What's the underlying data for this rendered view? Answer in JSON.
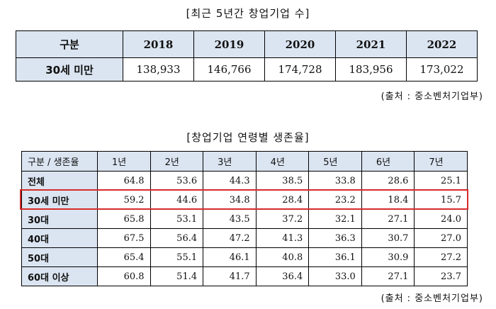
{
  "table1": {
    "title": "[최근 5년간 창업기업 수]",
    "headers": [
      "구분",
      "2018",
      "2019",
      "2020",
      "2021",
      "2022"
    ],
    "rows": [
      {
        "label": "30세 미만",
        "values": [
          "138,933",
          "146,766",
          "174,728",
          "183,956",
          "173,022"
        ]
      }
    ],
    "source": "(출처 : 중소벤처기업부)"
  },
  "table2": {
    "title": "[창업기업 연령별 생존율]",
    "headers": [
      "구분 / 생존율",
      "1년",
      "2년",
      "3년",
      "4년",
      "5년",
      "6년",
      "7년"
    ],
    "rows": [
      {
        "label": "전체",
        "values": [
          "64.8",
          "53.6",
          "44.3",
          "38.5",
          "33.8",
          "28.6",
          "25.1"
        ]
      },
      {
        "label": "30세 미만",
        "values": [
          "59.2",
          "44.6",
          "34.8",
          "28.4",
          "23.2",
          "18.4",
          "15.7"
        ]
      },
      {
        "label": "30대",
        "values": [
          "65.8",
          "53.1",
          "43.5",
          "37.2",
          "32.1",
          "27.1",
          "24.0"
        ]
      },
      {
        "label": "40대",
        "values": [
          "67.5",
          "56.4",
          "47.2",
          "41.3",
          "36.3",
          "30.7",
          "27.0"
        ]
      },
      {
        "label": "50대",
        "values": [
          "65.4",
          "55.1",
          "46.1",
          "40.8",
          "36.1",
          "30.9",
          "27.2"
        ]
      },
      {
        "label": "60대 이상",
        "values": [
          "60.8",
          "51.4",
          "41.7",
          "36.4",
          "33.0",
          "27.1",
          "23.7"
        ]
      }
    ],
    "highlight_row_label": "30세 미만",
    "highlight_color": "#d62b2b",
    "header_bg": "#dbe5f1",
    "source": "(출처 : 중소벤처기업부)"
  }
}
